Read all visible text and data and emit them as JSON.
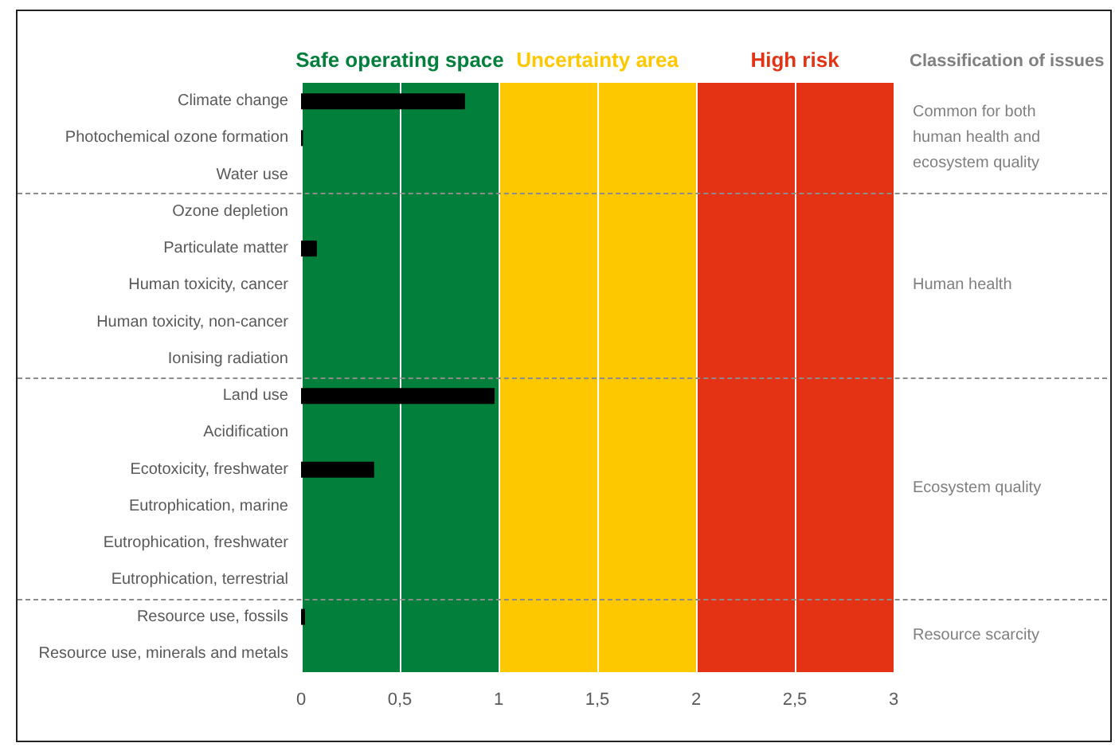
{
  "chart_data": {
    "type": "bar",
    "orientation": "horizontal",
    "categories": [
      "Climate change",
      "Photochemical ozone formation",
      "Water use",
      "Ozone depletion",
      "Particulate matter",
      "Human toxicity, cancer",
      "Human toxicity, non-cancer",
      "Ionising radiation",
      "Land use",
      "Acidification",
      "Ecotoxicity, freshwater",
      "Eutrophication, marine",
      "Eutrophication, freshwater",
      "Eutrophication, terrestrial",
      "Resource use, fossils",
      "Resource use, minerals and metals"
    ],
    "values": [
      0.83,
      0.01,
      0,
      0,
      0.08,
      0,
      0,
      0,
      0.98,
      0,
      0.37,
      0,
      0,
      0,
      0.02,
      0
    ],
    "color": "#000000",
    "xlim": [
      0,
      3
    ],
    "xticks": [
      0,
      {
        "value": 0.5,
        "label": "0,5"
      },
      1,
      {
        "value": 1.5,
        "label": "1,5"
      },
      2,
      {
        "value": 2.5,
        "label": "2,5"
      },
      3
    ],
    "grid": "x",
    "bands": [
      {
        "axis": "x",
        "from": 0,
        "to": 1,
        "label": "Safe operating space",
        "color": "#037f3c"
      },
      {
        "axis": "x",
        "from": 1,
        "to": 2,
        "label": "Uncertainty area",
        "color": "#fdc800"
      },
      {
        "axis": "x",
        "from": 2,
        "to": 3,
        "label": "High risk",
        "color": "#e33314"
      }
    ],
    "annotations": [
      "Classification of issues",
      "Common for both human health and ecosystem quality",
      "Human health",
      "Ecosystem quality",
      "Resource scarcity"
    ]
  }
}
